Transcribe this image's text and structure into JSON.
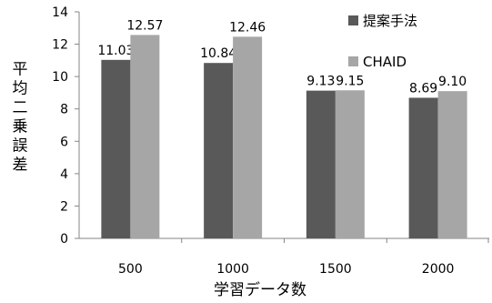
{
  "chart_data": {
    "type": "bar",
    "title": "",
    "xlabel": "学習データ数",
    "ylabel": "平均二乗誤差",
    "categories": [
      "500",
      "1000",
      "1500",
      "2000"
    ],
    "series": [
      {
        "name": "提案手法",
        "values": [
          11.03,
          10.84,
          9.13,
          8.69
        ],
        "labels": [
          "11.03",
          "10.84",
          "9.13",
          "8.69"
        ],
        "color": "#595959"
      },
      {
        "name": "CHAID",
        "values": [
          12.57,
          12.46,
          9.15,
          9.1
        ],
        "labels": [
          "12.57",
          "12.46",
          "9.15",
          "9.10"
        ],
        "color": "#a6a6a6"
      }
    ],
    "ylim": [
      0,
      14
    ],
    "yticks": [
      "0",
      "2",
      "4",
      "6",
      "8",
      "10",
      "12",
      "14"
    ],
    "grid": false,
    "legend_position": "top-right"
  }
}
